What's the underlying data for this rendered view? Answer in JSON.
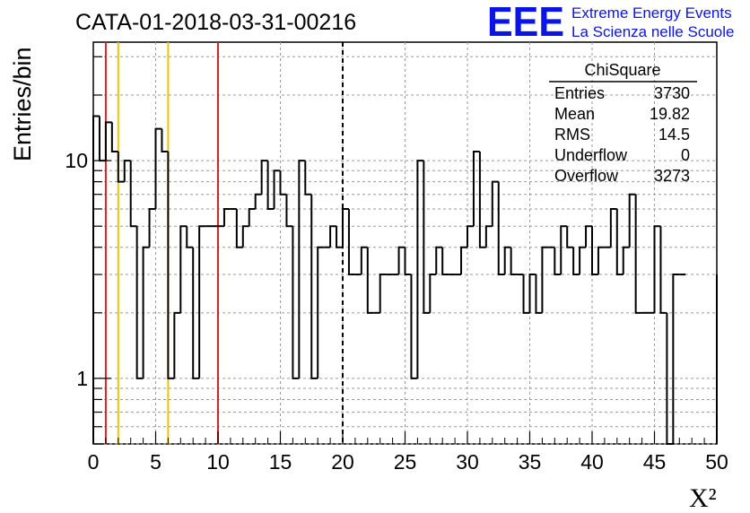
{
  "chart_data": {
    "type": "bar",
    "title": "CATA-01-2018-03-31-00216",
    "xlabel": "X²",
    "ylabel": "Entries/bin",
    "xlim": [
      0,
      50
    ],
    "ylim": [
      0.5,
      35
    ],
    "yscale": "log",
    "grid": true,
    "x_ticks": [
      "0",
      "5",
      "10",
      "15",
      "20",
      "25",
      "30",
      "35",
      "40",
      "45",
      "50"
    ],
    "y_ticks": [
      "1",
      "10"
    ],
    "bin_width": 0.5,
    "values": [
      16,
      10,
      15,
      11,
      8,
      10,
      5,
      1,
      4,
      6,
      14,
      11,
      1,
      2,
      5,
      4,
      1,
      5,
      5,
      5,
      5,
      6,
      6,
      4,
      5,
      6,
      7,
      10,
      6,
      9,
      7,
      5,
      1,
      10,
      7,
      1,
      4,
      4,
      5,
      4,
      6,
      3,
      3,
      4,
      2,
      2,
      3,
      3,
      3,
      4,
      3,
      1,
      10,
      2,
      3,
      4,
      3,
      3,
      3,
      4,
      5,
      11,
      4,
      5,
      8,
      3,
      4,
      3,
      3,
      2,
      3,
      2,
      4,
      4,
      3,
      5,
      4,
      3,
      4,
      5,
      3,
      4,
      4,
      6,
      3,
      4,
      7,
      2,
      2,
      2,
      5,
      2,
      0,
      3,
      3
    ],
    "reference_lines": [
      {
        "x": 1,
        "color": "#e02020",
        "style": "solid"
      },
      {
        "x": 2,
        "color": "#f2c200",
        "style": "solid"
      },
      {
        "x": 6,
        "color": "#f2c200",
        "style": "solid"
      },
      {
        "x": 10,
        "color": "#e02020",
        "style": "solid"
      },
      {
        "x": 20,
        "color": "#000000",
        "style": "dashed"
      }
    ]
  },
  "stats": {
    "title": "ChiSquare",
    "rows": [
      {
        "label": "Entries",
        "value": "3730"
      },
      {
        "label": "Mean",
        "value": "19.82"
      },
      {
        "label": "RMS",
        "value": "14.5"
      },
      {
        "label": "Underflow",
        "value": "0"
      },
      {
        "label": "Overflow",
        "value": "3273"
      }
    ]
  },
  "branding": {
    "logo": "EEE",
    "line1": "Extreme Energy Events",
    "line2": "La Scienza nelle Scuole",
    "color": "#0a14e6"
  }
}
